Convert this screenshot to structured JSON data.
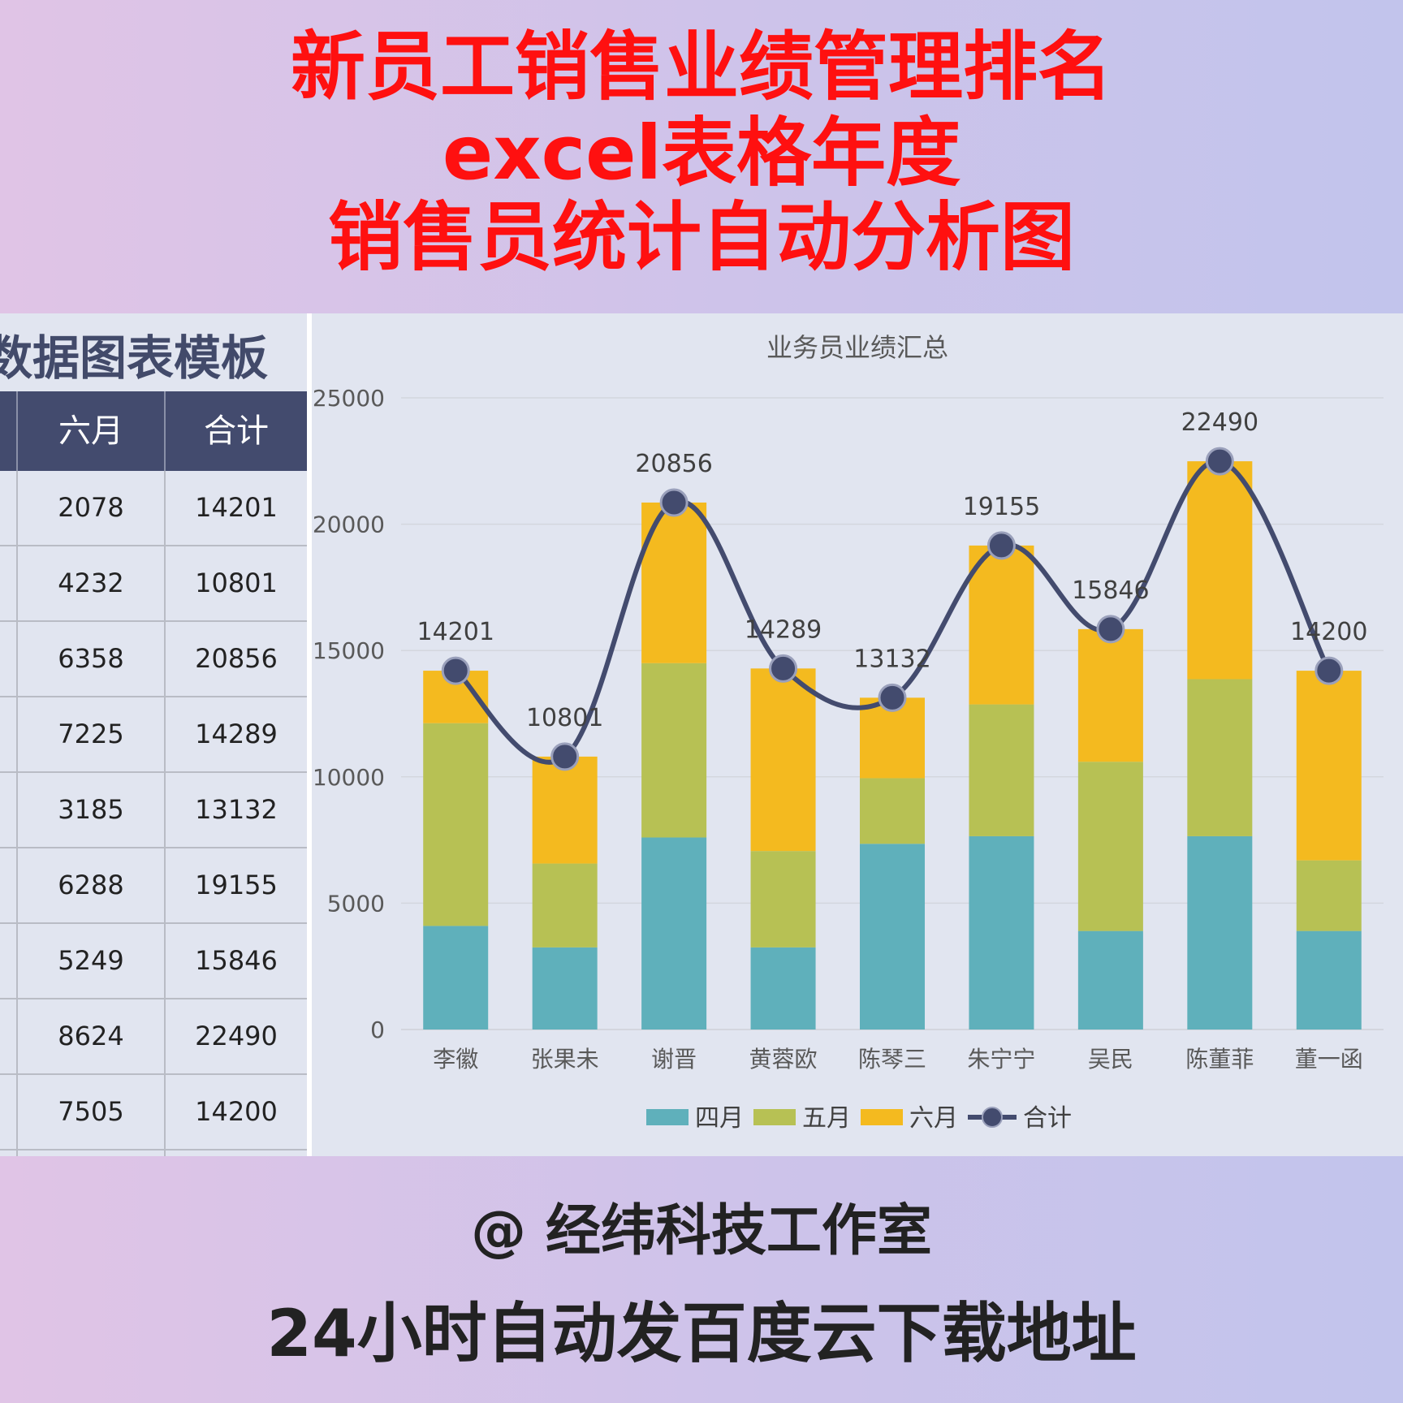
{
  "headline": {
    "line1": "新员工销售业绩管理排名",
    "line2": "excel表格年度",
    "line3": "销售员统计自动分析图"
  },
  "table": {
    "title": "数据图表模板",
    "headers": [
      "六月",
      "合计"
    ],
    "rows": [
      [
        "2078",
        "14201"
      ],
      [
        "4232",
        "10801"
      ],
      [
        "6358",
        "20856"
      ],
      [
        "7225",
        "14289"
      ],
      [
        "3185",
        "13132"
      ],
      [
        "6288",
        "19155"
      ],
      [
        "5249",
        "15846"
      ],
      [
        "8624",
        "22490"
      ],
      [
        "7505",
        "14200"
      ]
    ]
  },
  "chart_data": {
    "type": "bar",
    "stacked": true,
    "title": "业务员业绩汇总",
    "categories": [
      "李徽",
      "张果未",
      "谢晋",
      "黄蓉欧",
      "陈琴三",
      "朱宁宁",
      "吴民",
      "陈董菲",
      "董一函"
    ],
    "series": [
      {
        "name": "四月",
        "type": "bar",
        "color": "#5fb0bb",
        "values": [
          4100,
          3250,
          7600,
          3250,
          7350,
          7650,
          3900,
          7650,
          3900
        ]
      },
      {
        "name": "五月",
        "type": "bar",
        "color": "#b7c154",
        "values": [
          8023,
          3319,
          6898,
          3814,
          2597,
          5217,
          6697,
          6216,
          2795
        ]
      },
      {
        "name": "六月",
        "type": "bar",
        "color": "#f4ba1f",
        "values": [
          2078,
          4232,
          6358,
          7225,
          3185,
          6288,
          5249,
          8624,
          7505
        ]
      },
      {
        "name": "合计",
        "type": "line",
        "color": "#434b6e",
        "values": [
          14201,
          10801,
          20856,
          14289,
          13132,
          19155,
          15846,
          22490,
          14200
        ]
      }
    ],
    "ylim": [
      0,
      25000
    ],
    "yticks": [
      0,
      5000,
      10000,
      15000,
      20000,
      25000
    ],
    "grid": true,
    "legend_position": "bottom"
  },
  "footer": {
    "credit": "@ 经纬科技工作室",
    "download": "24小时自动发百度云下载地址"
  }
}
